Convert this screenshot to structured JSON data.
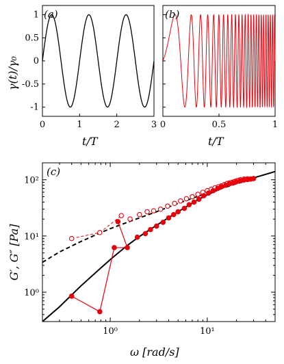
{
  "chart_data": [
    {
      "type": "line",
      "panel_label": "(a)",
      "xlabel": "t/T",
      "ylabel": "γ(t)/γ₀",
      "xlim": [
        0,
        3
      ],
      "ylim": [
        -1.2,
        1.2
      ],
      "x_ticks": [
        0,
        1,
        2,
        3
      ],
      "x_tick_labels": [
        "0",
        "1",
        "2",
        "3"
      ],
      "y_ticks": [
        -1,
        -0.5,
        0,
        0.5,
        1
      ],
      "y_tick_labels": [
        "-1",
        "-0.5",
        "0",
        "0.5",
        "1"
      ],
      "series": [
        {
          "color": "#000000",
          "function": "sin(2*pi*x)",
          "x_range": [
            0,
            3
          ]
        }
      ]
    },
    {
      "type": "line",
      "panel_label": "(b)",
      "xlabel": "t/T",
      "xlim": [
        0,
        1
      ],
      "ylim": [
        -1.2,
        1.2
      ],
      "x_ticks": [
        0,
        0.5,
        1
      ],
      "x_tick_labels": [
        "0",
        "0.5",
        "1"
      ],
      "series": [
        {
          "color": "#e8000b",
          "function": "sin(2*pi*f(x)) chirp, frequency increasing with x",
          "x_range": [
            0,
            1
          ]
        }
      ]
    },
    {
      "type": "scatter",
      "panel_label": "(c)",
      "xlabel": "ω [rad/s]",
      "ylabel": "G′, G″ [Pa]",
      "x_scale": "log",
      "y_scale": "log",
      "xlim": [
        0.2,
        50
      ],
      "ylim": [
        0.3,
        200
      ],
      "x_ticks": [
        1,
        10
      ],
      "x_tick_labels": [
        "10⁰",
        "10¹"
      ],
      "y_ticks": [
        1,
        10,
        100
      ],
      "y_tick_labels": [
        "10⁰",
        "10¹",
        "10²"
      ],
      "series": [
        {
          "marker": "open circle",
          "color": "#e8000b",
          "line": "dashed, first points only",
          "x": [
            0.4,
            0.78,
            1.3,
            1.6,
            2.0,
            2.4,
            2.8,
            3.3,
            3.9,
            4.6,
            5.3,
            6.1,
            7.0,
            8.0,
            9.0,
            10.0,
            11.0,
            12.0,
            13.0,
            14.0,
            15.0,
            16.0,
            17.0,
            18.0,
            19.0,
            20.0,
            21.0,
            22.0,
            24.0,
            26.0,
            28.0,
            30.0
          ],
          "values": [
            9.0,
            11.5,
            23.0,
            20.0,
            24.0,
            27.0,
            28.0,
            30.0,
            34.0,
            38.0,
            42.0,
            46.0,
            50.0,
            55.0,
            60.0,
            64.0,
            68.0,
            72.0,
            75.0,
            78.0,
            82.0,
            86.0,
            88.0,
            90.0,
            93.0,
            96.0,
            98.0,
            100.0,
            103.0,
            104.0,
            103.0,
            105.0
          ]
        },
        {
          "marker": "filled circle",
          "color": "#e8000b",
          "line": "solid, first points only",
          "x": [
            0.4,
            0.78,
            1.1,
            1.5,
            1.2,
            1.9,
            2.3,
            2.6,
            3.0,
            3.5,
            4.0,
            4.5,
            5.0,
            5.8,
            6.5,
            7.3,
            8.2,
            9.2,
            10.3,
            11.5,
            12.8,
            14.0,
            15.5,
            17.0,
            18.5,
            20.0,
            22.0,
            24.0,
            26.0,
            28.0,
            30.0
          ],
          "values": [
            0.85,
            0.45,
            6.2,
            6.2,
            18.0,
            9.5,
            11.0,
            13.0,
            15.0,
            17.5,
            21.0,
            24.0,
            27.0,
            31.0,
            36.0,
            40.0,
            45.0,
            52.0,
            58.0,
            64.0,
            70.0,
            75.0,
            80.0,
            85.0,
            88.0,
            92.0,
            96.0,
            99.0,
            101.0,
            103.0,
            105.0
          ]
        },
        {
          "type": "line",
          "style": "solid",
          "color": "#000000",
          "line_width": 2,
          "x": [
            0.2,
            0.3,
            0.5,
            0.8,
            1.0,
            1.5,
            2.0,
            3.0,
            5.0,
            8.0,
            10.0,
            15.0,
            20.0,
            30.0,
            50.0
          ],
          "values": [
            0.3,
            0.55,
            1.3,
            2.7,
            3.8,
            6.8,
            9.8,
            15.5,
            27.0,
            44.0,
            54.0,
            74.0,
            88.0,
            108.0,
            140.0
          ]
        },
        {
          "type": "line",
          "style": "dashed",
          "color": "#000000",
          "line_width": 2,
          "x": [
            0.2,
            0.3,
            0.5,
            0.8,
            1.0,
            2.0,
            3.0,
            5.0,
            10.0,
            20.0,
            30.0
          ],
          "values": [
            3.4,
            5.2,
            8.0,
            11.5,
            13.5,
            21.0,
            27.0,
            38.0,
            58.0,
            85.0,
            104.0
          ]
        }
      ]
    }
  ]
}
